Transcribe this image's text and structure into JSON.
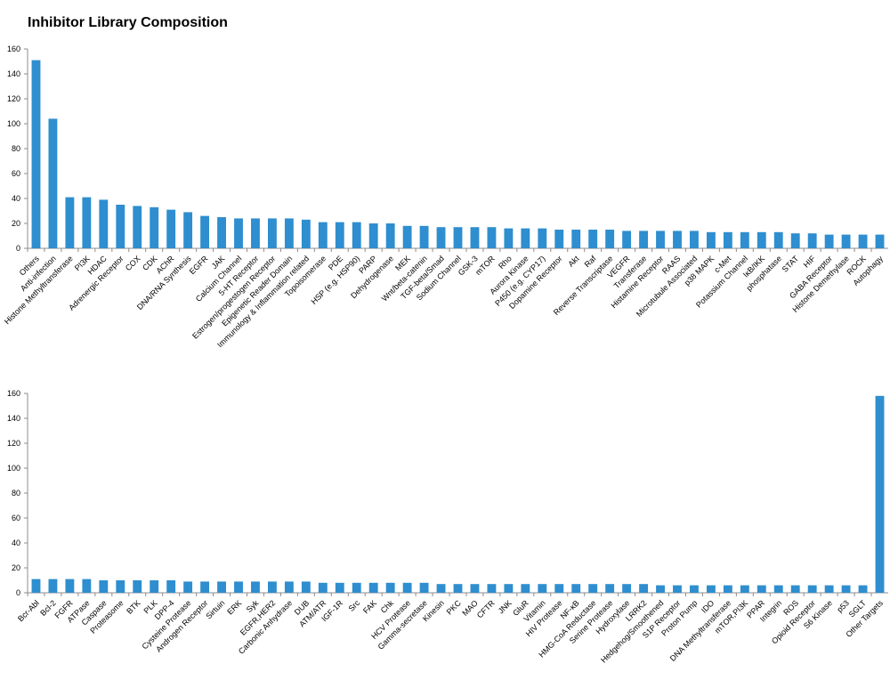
{
  "title": "Inhibitor Library Composition",
  "colors": {
    "bar": "#2e8ecf",
    "axis": "#8c8c8c"
  },
  "chart_data": [
    {
      "type": "bar",
      "ylim": [
        0,
        160
      ],
      "yticks": [
        0,
        20,
        40,
        60,
        80,
        100,
        120,
        140,
        160
      ],
      "grid": false,
      "categories": [
        "Others",
        "Anti-infection",
        "Histone Methyltransferase",
        "PI3K",
        "HDAC",
        "Adrenergic Receptor",
        "COX",
        "CDK",
        "AChR",
        "DNA/RNA Synthesis",
        "EGFR",
        "JAK",
        "Calcium Channel",
        "5-HT Receptor",
        "Estrogen/progestogen Receptor",
        "Epigenetic Reader Domain",
        "Immunology & Inflammation related",
        "Topoisomerase",
        "PDE",
        "HSP (e.g. HSP90)",
        "PARP",
        "Dehydrogenase",
        "MEK",
        "Wnt/beta-catenin",
        "TGF-beta/Smad",
        "Sodium Channel",
        "GSK-3",
        "mTOR",
        "Rho",
        "Aurora Kinase",
        "P450 (e.g. CYP17)",
        "Dopamine Receptor",
        "Akt",
        "Raf",
        "Reverse Transcriptase",
        "VEGFR",
        "Transferase",
        "Histamine Receptor",
        "RAAS",
        "Microtubule Associated",
        "p38 MAPK",
        "c-Met",
        "Potassium Channel",
        "IκB/IKK",
        "phosphatase",
        "STAT",
        "HIF",
        "GABA Receptor",
        "Histone Demethylase",
        "ROCK",
        "Autophagy"
      ],
      "values": [
        151,
        104,
        41,
        41,
        39,
        35,
        34,
        33,
        31,
        29,
        26,
        25,
        24,
        24,
        24,
        24,
        23,
        21,
        21,
        21,
        20,
        20,
        18,
        18,
        17,
        17,
        17,
        17,
        16,
        16,
        16,
        15,
        15,
        15,
        15,
        14,
        14,
        14,
        14,
        14,
        13,
        13,
        13,
        13,
        13,
        12,
        12,
        11,
        11,
        11,
        11
      ]
    },
    {
      "type": "bar",
      "ylim": [
        0,
        160
      ],
      "yticks": [
        0,
        20,
        40,
        60,
        80,
        100,
        120,
        140,
        160
      ],
      "grid": false,
      "categories": [
        "Bcr-Abl",
        "Bcl-2",
        "FGFR",
        "ATPase",
        "Caspase",
        "Proteasome",
        "BTK",
        "PLK",
        "DPP-4",
        "Cysteine Protease",
        "Androgen Receptor",
        "Sirtuin",
        "ERK",
        "Syk",
        "EGFR,HER2",
        "Carbonic Anhydrase",
        "DUB",
        "ATM/ATR",
        "IGF-1R",
        "Src",
        "FAK",
        "Chk",
        "HCV Protease",
        "Gamma-secretase",
        "Kinesin",
        "PKC",
        "MAO",
        "CFTR",
        "JNK",
        "GluR",
        "Vitamin",
        "HIV Protease",
        "NF-κB",
        "HMG-CoA Reductase",
        "Serine Protease",
        "Hydroxylase",
        "LRRK2",
        "Hedgehog/Smoothened",
        "S1P Receptor",
        "Proton Pump",
        "IDO",
        "DNA Methyltransferase",
        "mTOR,PI3K",
        "PPAR",
        "Integrin",
        "ROS",
        "Opioid Receptor",
        "S6 Kinase",
        "p53",
        "SGLT",
        "Other Targets"
      ],
      "values": [
        11,
        11,
        11,
        11,
        10,
        10,
        10,
        10,
        10,
        9,
        9,
        9,
        9,
        9,
        9,
        9,
        9,
        8,
        8,
        8,
        8,
        8,
        8,
        8,
        7,
        7,
        7,
        7,
        7,
        7,
        7,
        7,
        7,
        7,
        7,
        7,
        7,
        6,
        6,
        6,
        6,
        6,
        6,
        6,
        6,
        6,
        6,
        6,
        6,
        6,
        158
      ]
    }
  ]
}
